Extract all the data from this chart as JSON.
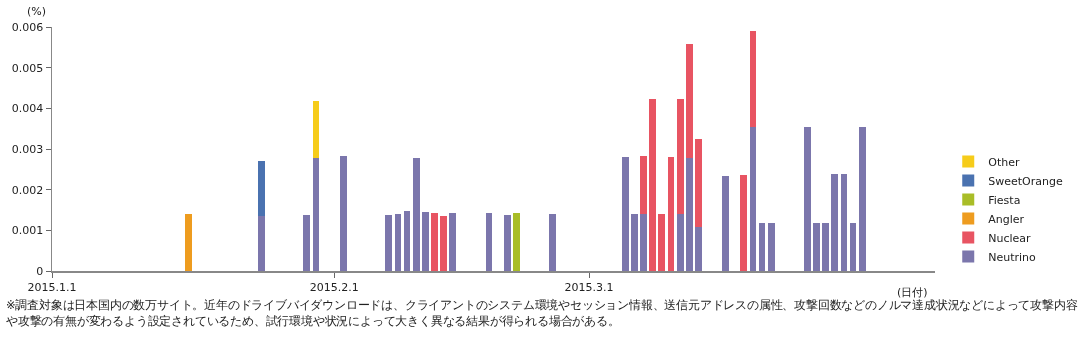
{
  "chart_data": {
    "type": "bar",
    "stacked": true,
    "ylabel": "(%)",
    "xlabel": "(日付)",
    "x": [
      "2015-01-16",
      "2015-01-24",
      "2015-01-29",
      "2015-01-30",
      "2015-02-02",
      "2015-02-07",
      "2015-02-08",
      "2015-02-09",
      "2015-02-10",
      "2015-02-11",
      "2015-02-12",
      "2015-02-13",
      "2015-02-14",
      "2015-02-18",
      "2015-02-20",
      "2015-02-21",
      "2015-02-25",
      "2015-03-05",
      "2015-03-06",
      "2015-03-07",
      "2015-03-08",
      "2015-03-09",
      "2015-03-10",
      "2015-03-11",
      "2015-03-12",
      "2015-03-13",
      "2015-03-16",
      "2015-03-18",
      "2015-03-19",
      "2015-03-20",
      "2015-03-21",
      "2015-03-25",
      "2015-03-26",
      "2015-03-27",
      "2015-03-28",
      "2015-03-29",
      "2015-03-30",
      "2015-03-31"
    ],
    "series": [
      {
        "name": "Neutrino",
        "color": "#7b76ac",
        "values": [
          null,
          0.00135,
          0.00138,
          0.00277,
          0.00284,
          0.00138,
          0.00141,
          0.00148,
          0.00279,
          0.00144,
          null,
          null,
          0.00143,
          0.00143,
          0.00138,
          null,
          0.00139,
          0.00281,
          0.00141,
          0.00141,
          null,
          null,
          null,
          0.00141,
          0.00278,
          0.00107,
          0.00234,
          null,
          0.00354,
          0.00118,
          0.00118,
          0.00355,
          0.00118,
          0.00118,
          0.00238,
          0.00238,
          0.00118,
          0.00355
        ]
      },
      {
        "name": "Nuclear",
        "color": "#e85462",
        "values": [
          null,
          null,
          null,
          null,
          null,
          null,
          null,
          null,
          null,
          null,
          0.00142,
          0.00136,
          null,
          null,
          null,
          null,
          null,
          null,
          null,
          0.00141,
          0.00422,
          0.00139,
          0.0028,
          0.00282,
          0.00279,
          0.00218,
          null,
          0.00235,
          0.00237,
          null,
          null,
          null,
          null,
          null,
          null,
          null,
          null,
          null
        ]
      },
      {
        "name": "Angler",
        "color": "#ee9c1f",
        "values": [
          0.0014,
          null,
          null,
          null,
          null,
          null,
          null,
          null,
          null,
          null,
          null,
          null,
          null,
          null,
          null,
          null,
          null,
          null,
          null,
          null,
          null,
          null,
          null,
          null,
          null,
          null,
          null,
          null,
          null,
          null,
          null,
          null,
          null,
          null,
          null,
          null,
          null,
          null
        ]
      },
      {
        "name": "Fiesta",
        "color": "#a9bd27",
        "values": [
          null,
          null,
          null,
          null,
          null,
          null,
          null,
          null,
          null,
          null,
          null,
          null,
          null,
          null,
          null,
          0.00142,
          null,
          null,
          null,
          null,
          null,
          null,
          null,
          null,
          null,
          null,
          null,
          null,
          null,
          null,
          null,
          null,
          null,
          null,
          null,
          null,
          null,
          null
        ]
      },
      {
        "name": "SweetOrange",
        "color": "#4a72b0",
        "values": [
          null,
          0.00135,
          null,
          null,
          null,
          null,
          null,
          null,
          null,
          null,
          null,
          null,
          null,
          null,
          null,
          null,
          null,
          null,
          null,
          null,
          null,
          null,
          null,
          null,
          null,
          null,
          null,
          null,
          null,
          null,
          null,
          null,
          null,
          null,
          null,
          null,
          null,
          null
        ]
      },
      {
        "name": "Other",
        "color": "#f6cc1a",
        "values": [
          null,
          null,
          null,
          0.00141,
          null,
          null,
          null,
          null,
          null,
          null,
          null,
          null,
          null,
          null,
          null,
          null,
          null,
          null,
          null,
          null,
          null,
          null,
          null,
          null,
          null,
          null,
          null,
          null,
          null,
          null,
          null,
          null,
          null,
          null,
          null,
          null,
          null,
          null
        ]
      }
    ],
    "xlim": [
      "2015-01-01",
      "2015-04-08"
    ],
    "xticks": [
      {
        "value": "2015-01-01",
        "label": "2015.1.1"
      },
      {
        "value": "2015-02-01",
        "label": "2015.2.1"
      },
      {
        "value": "2015-03-01",
        "label": "2015.3.1"
      }
    ],
    "ylim": [
      0,
      0.006
    ],
    "yticks": [
      0,
      0.001,
      0.002,
      0.003,
      0.004,
      0.005,
      0.006
    ],
    "grid": false,
    "legend": "right",
    "annotations": [
      "※調査対象は日本国内の数万サイト。近年のドライブバイダウンロードは、クライアントのシステム環境やセッション情報、送信元アドレスの属性、攻撃回数などのノルマ達成状況などによって攻撃内容や攻撃の有無が変わるよう設定されているため、試行環境や状況によって大きく異なる結果が得られる場合がある。"
    ]
  }
}
